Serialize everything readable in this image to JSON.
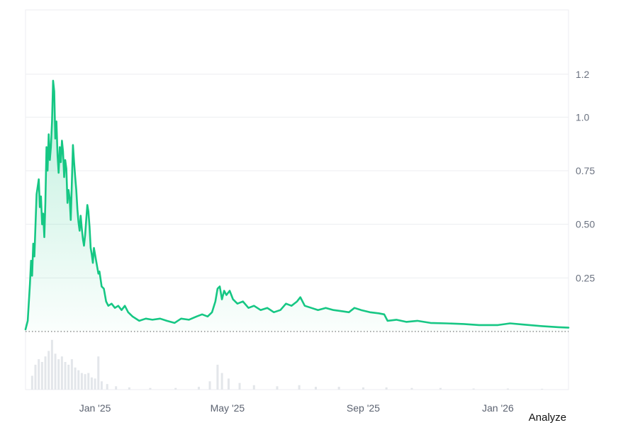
{
  "chart_data": {
    "type": "area",
    "y_ticks": [
      {
        "value": 0.25,
        "label": "0.25"
      },
      {
        "value": 0.5,
        "label": "0.50"
      },
      {
        "value": 0.75,
        "label": "0.75"
      },
      {
        "value": 1.0,
        "label": "1.0"
      },
      {
        "value": 1.2,
        "label": "1.2"
      }
    ],
    "ylim": [
      0,
      1.5
    ],
    "x_range": [
      "2024-10-30",
      "2026-03-06"
    ],
    "x_ticks": [
      {
        "date": "2025-01-01",
        "label": "Jan '25"
      },
      {
        "date": "2025-05-01",
        "label": "May '25"
      },
      {
        "date": "2025-09-01",
        "label": "Sep '25"
      },
      {
        "date": "2026-01-01",
        "label": "Jan '26"
      }
    ],
    "grid": true,
    "baseline_dotted_at": 0,
    "colors": {
      "line": "#16c784",
      "fill_top": "#16c784",
      "volume": "#e3e6ea",
      "grid": "#eceef1"
    },
    "series": [
      {
        "points": [
          [
            "2024-10-30",
            0.01
          ],
          [
            "2024-11-01",
            0.05
          ],
          [
            "2024-11-03",
            0.22
          ],
          [
            "2024-11-04",
            0.33
          ],
          [
            "2024-11-05",
            0.26
          ],
          [
            "2024-11-06",
            0.41
          ],
          [
            "2024-11-07",
            0.35
          ],
          [
            "2024-11-09",
            0.64
          ],
          [
            "2024-11-11",
            0.71
          ],
          [
            "2024-11-12",
            0.58
          ],
          [
            "2024-11-13",
            0.63
          ],
          [
            "2024-11-14",
            0.5
          ],
          [
            "2024-11-15",
            0.55
          ],
          [
            "2024-11-16",
            0.44
          ],
          [
            "2024-11-17",
            0.6
          ],
          [
            "2024-11-18",
            0.86
          ],
          [
            "2024-11-19",
            0.75
          ],
          [
            "2024-11-20",
            0.92
          ],
          [
            "2024-11-21",
            0.8
          ],
          [
            "2024-11-22",
            0.86
          ],
          [
            "2024-11-23",
            0.98
          ],
          [
            "2024-11-24",
            1.17
          ],
          [
            "2024-11-25",
            1.12
          ],
          [
            "2024-11-26",
            0.9
          ],
          [
            "2024-11-27",
            0.98
          ],
          [
            "2024-11-28",
            0.82
          ],
          [
            "2024-11-29",
            0.74
          ],
          [
            "2024-11-30",
            0.86
          ],
          [
            "2024-12-01",
            0.79
          ],
          [
            "2024-12-02",
            0.89
          ],
          [
            "2024-12-03",
            0.84
          ],
          [
            "2024-12-04",
            0.72
          ],
          [
            "2024-12-05",
            0.8
          ],
          [
            "2024-12-06",
            0.76
          ],
          [
            "2024-12-07",
            0.6
          ],
          [
            "2024-12-08",
            0.66
          ],
          [
            "2024-12-09",
            0.62
          ],
          [
            "2024-12-10",
            0.52
          ],
          [
            "2024-12-11",
            0.7
          ],
          [
            "2024-12-12",
            0.87
          ],
          [
            "2024-12-13",
            0.79
          ],
          [
            "2024-12-14",
            0.72
          ],
          [
            "2024-12-15",
            0.66
          ],
          [
            "2024-12-16",
            0.57
          ],
          [
            "2024-12-17",
            0.51
          ],
          [
            "2024-12-18",
            0.47
          ],
          [
            "2024-12-19",
            0.54
          ],
          [
            "2024-12-20",
            0.48
          ],
          [
            "2024-12-21",
            0.43
          ],
          [
            "2024-12-22",
            0.4
          ],
          [
            "2024-12-23",
            0.45
          ],
          [
            "2024-12-24",
            0.52
          ],
          [
            "2024-12-25",
            0.59
          ],
          [
            "2024-12-26",
            0.56
          ],
          [
            "2024-12-27",
            0.49
          ],
          [
            "2024-12-28",
            0.39
          ],
          [
            "2024-12-29",
            0.36
          ],
          [
            "2024-12-30",
            0.32
          ],
          [
            "2024-12-31",
            0.39
          ],
          [
            "2025-01-02",
            0.33
          ],
          [
            "2025-01-04",
            0.27
          ],
          [
            "2025-01-05",
            0.28
          ],
          [
            "2025-01-07",
            0.21
          ],
          [
            "2025-01-09",
            0.2
          ],
          [
            "2025-01-11",
            0.14
          ],
          [
            "2025-01-13",
            0.12
          ],
          [
            "2025-01-16",
            0.13
          ],
          [
            "2025-01-19",
            0.11
          ],
          [
            "2025-01-22",
            0.12
          ],
          [
            "2025-01-25",
            0.1
          ],
          [
            "2025-01-28",
            0.12
          ],
          [
            "2025-01-31",
            0.09
          ],
          [
            "2025-02-04",
            0.07
          ],
          [
            "2025-02-10",
            0.05
          ],
          [
            "2025-02-16",
            0.06
          ],
          [
            "2025-02-22",
            0.055
          ],
          [
            "2025-03-01",
            0.06
          ],
          [
            "2025-03-07",
            0.05
          ],
          [
            "2025-03-14",
            0.04
          ],
          [
            "2025-03-20",
            0.06
          ],
          [
            "2025-03-27",
            0.055
          ],
          [
            "2025-04-03",
            0.07
          ],
          [
            "2025-04-08",
            0.08
          ],
          [
            "2025-04-13",
            0.07
          ],
          [
            "2025-04-17",
            0.09
          ],
          [
            "2025-04-20",
            0.14
          ],
          [
            "2025-04-22",
            0.2
          ],
          [
            "2025-04-24",
            0.21
          ],
          [
            "2025-04-26",
            0.15
          ],
          [
            "2025-04-28",
            0.19
          ],
          [
            "2025-04-30",
            0.17
          ],
          [
            "2025-05-03",
            0.19
          ],
          [
            "2025-05-06",
            0.15
          ],
          [
            "2025-05-10",
            0.13
          ],
          [
            "2025-05-15",
            0.14
          ],
          [
            "2025-05-20",
            0.11
          ],
          [
            "2025-05-25",
            0.12
          ],
          [
            "2025-05-31",
            0.1
          ],
          [
            "2025-06-06",
            0.11
          ],
          [
            "2025-06-12",
            0.09
          ],
          [
            "2025-06-18",
            0.1
          ],
          [
            "2025-06-23",
            0.13
          ],
          [
            "2025-06-28",
            0.12
          ],
          [
            "2025-07-03",
            0.14
          ],
          [
            "2025-07-06",
            0.16
          ],
          [
            "2025-07-10",
            0.12
          ],
          [
            "2025-07-16",
            0.11
          ],
          [
            "2025-07-22",
            0.1
          ],
          [
            "2025-07-29",
            0.11
          ],
          [
            "2025-08-05",
            0.1
          ],
          [
            "2025-08-12",
            0.095
          ],
          [
            "2025-08-19",
            0.09
          ],
          [
            "2025-08-24",
            0.11
          ],
          [
            "2025-08-30",
            0.1
          ],
          [
            "2025-09-07",
            0.09
          ],
          [
            "2025-09-15",
            0.085
          ],
          [
            "2025-09-20",
            0.08
          ],
          [
            "2025-09-23",
            0.05
          ],
          [
            "2025-10-01",
            0.055
          ],
          [
            "2025-10-10",
            0.045
          ],
          [
            "2025-10-20",
            0.05
          ],
          [
            "2025-11-01",
            0.04
          ],
          [
            "2025-11-15",
            0.038
          ],
          [
            "2025-12-01",
            0.035
          ],
          [
            "2025-12-15",
            0.03
          ],
          [
            "2026-01-01",
            0.03
          ],
          [
            "2026-01-12",
            0.038
          ],
          [
            "2026-01-25",
            0.032
          ],
          [
            "2026-02-10",
            0.025
          ],
          [
            "2026-02-25",
            0.02
          ],
          [
            "2026-03-06",
            0.018
          ]
        ]
      }
    ],
    "volume": [
      [
        "2024-11-05",
        0.25
      ],
      [
        "2024-11-08",
        0.45
      ],
      [
        "2024-11-11",
        0.55
      ],
      [
        "2024-11-14",
        0.5
      ],
      [
        "2024-11-17",
        0.6
      ],
      [
        "2024-11-20",
        0.7
      ],
      [
        "2024-11-23",
        0.9
      ],
      [
        "2024-11-26",
        0.65
      ],
      [
        "2024-11-29",
        0.55
      ],
      [
        "2024-12-02",
        0.6
      ],
      [
        "2024-12-05",
        0.5
      ],
      [
        "2024-12-08",
        0.45
      ],
      [
        "2024-12-11",
        0.55
      ],
      [
        "2024-12-14",
        0.4
      ],
      [
        "2024-12-17",
        0.35
      ],
      [
        "2024-12-20",
        0.3
      ],
      [
        "2024-12-23",
        0.28
      ],
      [
        "2024-12-26",
        0.3
      ],
      [
        "2024-12-29",
        0.22
      ],
      [
        "2025-01-01",
        0.2
      ],
      [
        "2025-01-04",
        0.6
      ],
      [
        "2025-01-07",
        0.15
      ],
      [
        "2025-01-12",
        0.1
      ],
      [
        "2025-01-20",
        0.06
      ],
      [
        "2025-02-01",
        0.04
      ],
      [
        "2025-02-20",
        0.03
      ],
      [
        "2025-03-15",
        0.03
      ],
      [
        "2025-04-05",
        0.05
      ],
      [
        "2025-04-15",
        0.15
      ],
      [
        "2025-04-22",
        0.45
      ],
      [
        "2025-04-26",
        0.3
      ],
      [
        "2025-05-02",
        0.2
      ],
      [
        "2025-05-12",
        0.12
      ],
      [
        "2025-05-25",
        0.08
      ],
      [
        "2025-06-15",
        0.06
      ],
      [
        "2025-07-05",
        0.08
      ],
      [
        "2025-07-20",
        0.05
      ],
      [
        "2025-08-10",
        0.05
      ],
      [
        "2025-09-01",
        0.04
      ],
      [
        "2025-09-22",
        0.04
      ],
      [
        "2025-10-15",
        0.03
      ],
      [
        "2025-11-10",
        0.03
      ],
      [
        "2025-12-10",
        0.02
      ],
      [
        "2026-01-10",
        0.02
      ],
      [
        "2026-02-10",
        0.015
      ]
    ]
  },
  "footer": {
    "analyze_label": "Analyze"
  }
}
